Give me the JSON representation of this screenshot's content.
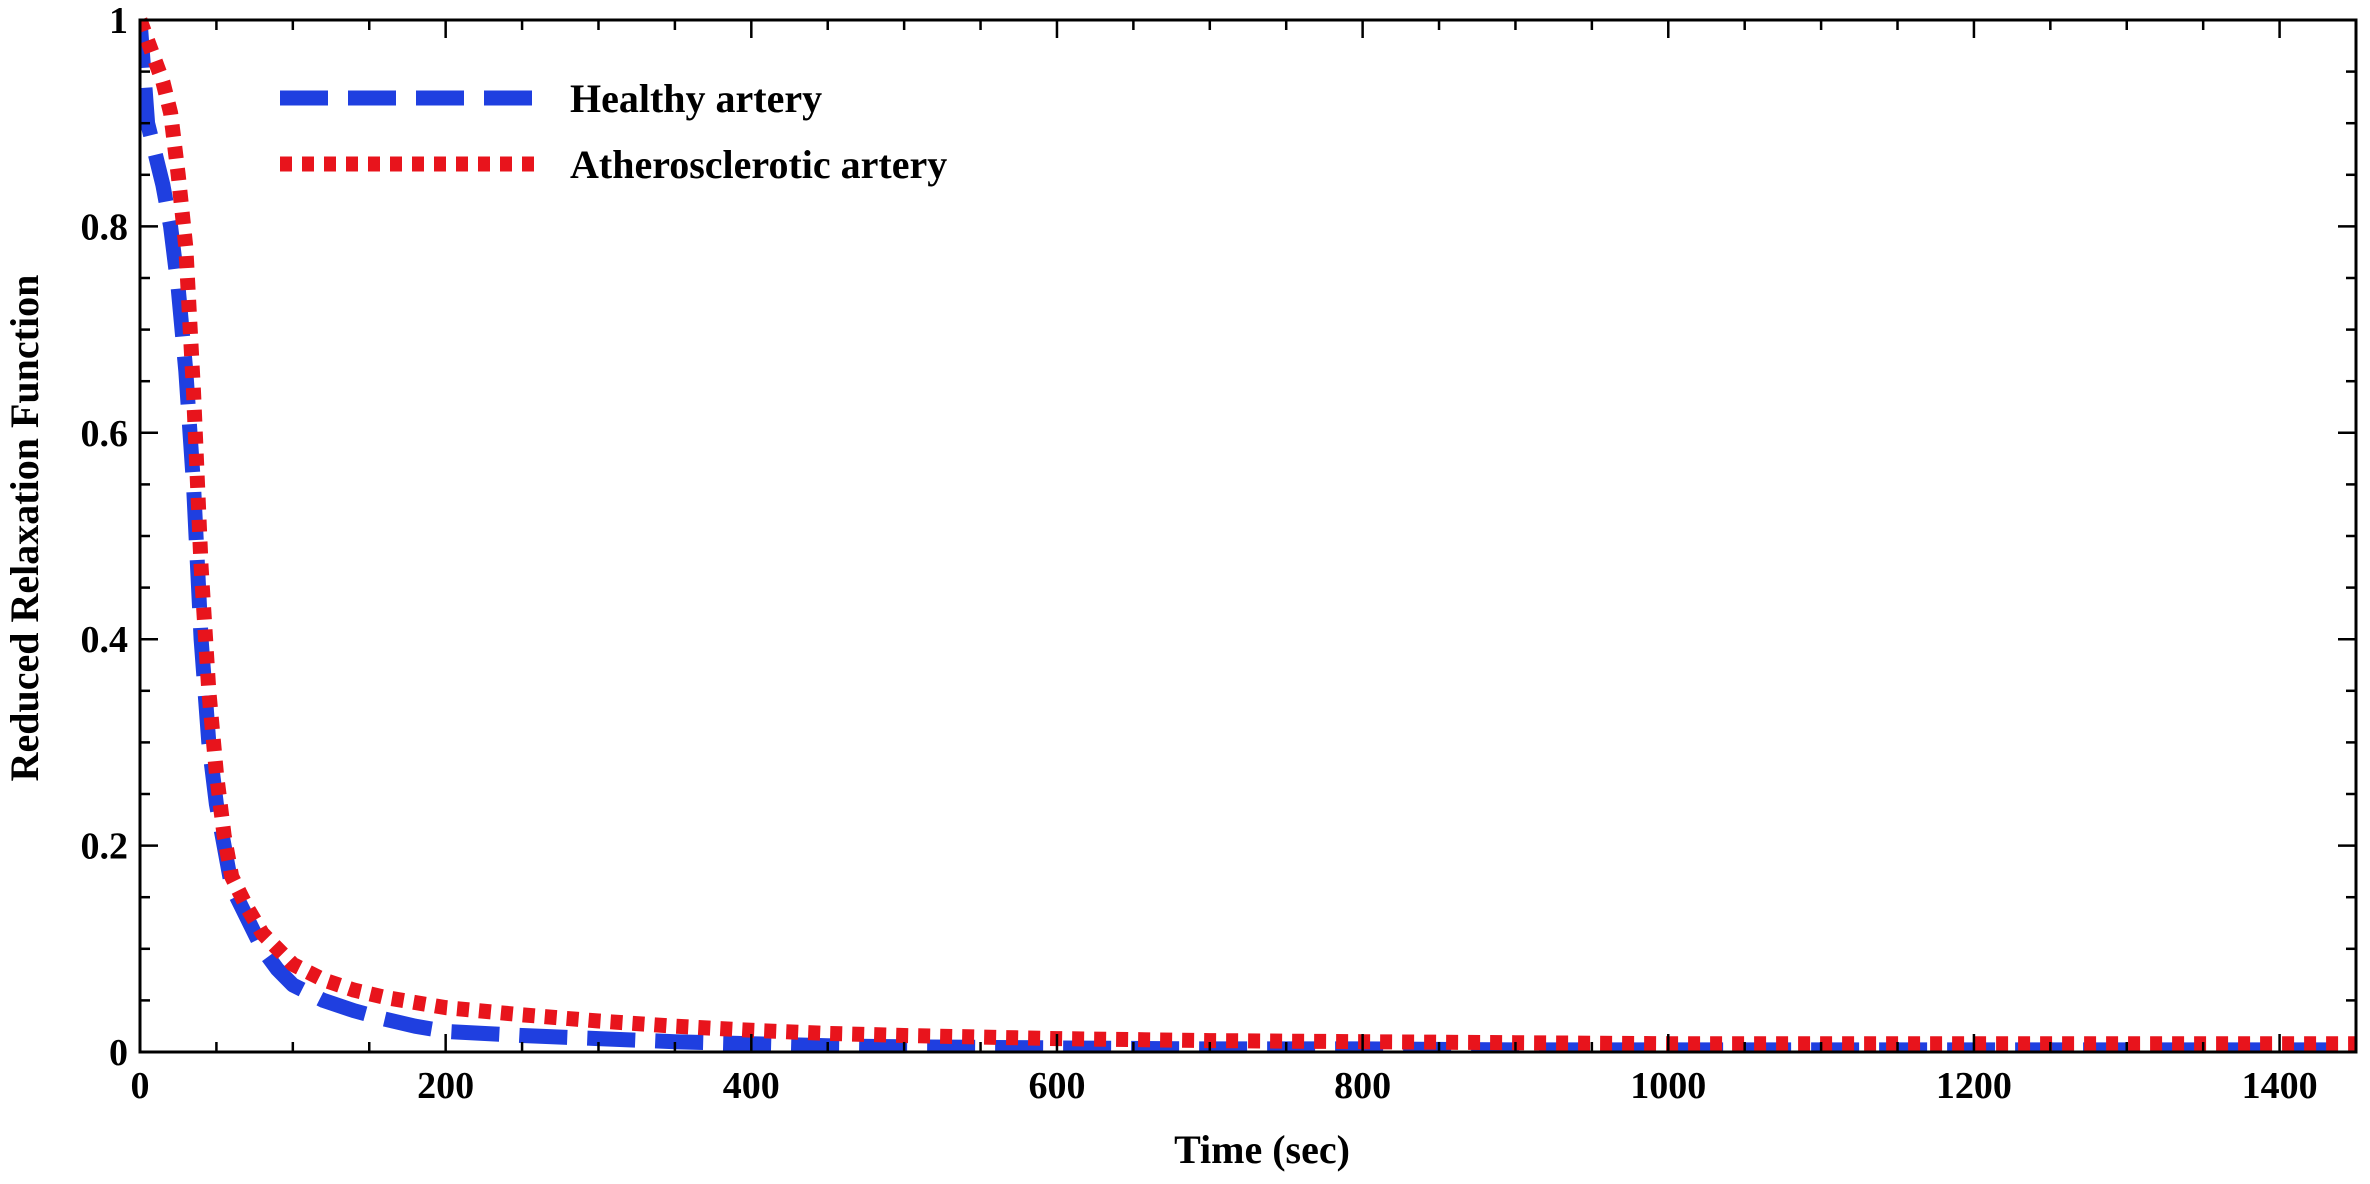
{
  "chart_data": {
    "type": "line",
    "title": "",
    "xlabel": "Time (sec)",
    "ylabel": "Reduced Relaxation Function",
    "xlim": [
      0,
      1450
    ],
    "ylim": [
      0,
      1
    ],
    "xticks": [
      0,
      200,
      400,
      600,
      800,
      1000,
      1200,
      1400
    ],
    "yticks": [
      0,
      0.2,
      0.4,
      0.6,
      0.8,
      1
    ],
    "xtick_labels": [
      "0",
      "200",
      "400",
      "600",
      "800",
      "1000",
      "1200",
      "1400"
    ],
    "ytick_labels": [
      "0",
      "0.2",
      "0.4",
      "0.6",
      "0.8",
      "1"
    ],
    "grid": false,
    "legend_position": "top-left",
    "series": [
      {
        "name": "Healthy artery",
        "color": "#1f3fe0",
        "style": "dashed",
        "x": [
          0,
          5,
          10,
          15,
          20,
          25,
          30,
          35,
          40,
          45,
          50,
          55,
          60,
          70,
          80,
          90,
          100,
          120,
          140,
          160,
          180,
          200,
          250,
          300,
          350,
          400,
          450,
          500,
          600,
          700,
          800,
          900,
          1000,
          1100,
          1200,
          1300,
          1450
        ],
        "y": [
          1.0,
          0.9,
          0.87,
          0.84,
          0.8,
          0.74,
          0.66,
          0.55,
          0.4,
          0.3,
          0.24,
          0.2,
          0.16,
          0.13,
          0.1,
          0.08,
          0.065,
          0.05,
          0.04,
          0.032,
          0.025,
          0.02,
          0.016,
          0.013,
          0.01,
          0.008,
          0.006,
          0.005,
          0.004,
          0.003,
          0.003,
          0.002,
          0.002,
          0.002,
          0.002,
          0.002,
          0.002
        ]
      },
      {
        "name": "Atherosclerotic artery",
        "color": "#e8141c",
        "style": "dotted",
        "x": [
          0,
          5,
          10,
          15,
          20,
          25,
          30,
          35,
          40,
          45,
          50,
          55,
          60,
          70,
          80,
          90,
          100,
          120,
          140,
          160,
          180,
          200,
          250,
          300,
          350,
          400,
          450,
          500,
          600,
          700,
          800,
          900,
          1000,
          1100,
          1200,
          1300,
          1450
        ],
        "y": [
          1.0,
          0.98,
          0.96,
          0.94,
          0.91,
          0.85,
          0.78,
          0.64,
          0.47,
          0.35,
          0.27,
          0.21,
          0.17,
          0.14,
          0.115,
          0.1,
          0.085,
          0.07,
          0.06,
          0.053,
          0.048,
          0.043,
          0.036,
          0.03,
          0.025,
          0.021,
          0.018,
          0.016,
          0.013,
          0.011,
          0.01,
          0.009,
          0.008,
          0.008,
          0.008,
          0.008,
          0.008
        ]
      }
    ]
  }
}
